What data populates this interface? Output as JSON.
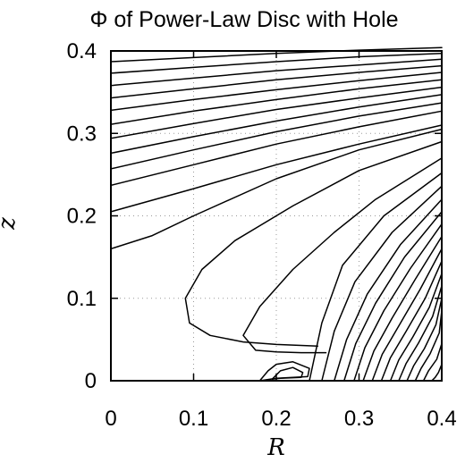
{
  "chart_data": {
    "type": "contour",
    "title": "Φ of Power-Law Disc with Hole",
    "xlabel": "R",
    "ylabel": "z",
    "xlim": [
      0,
      0.4
    ],
    "ylim": [
      0,
      0.4
    ],
    "grid": true,
    "x_ticks": [
      0,
      0.1,
      0.2,
      0.3,
      0.4
    ],
    "y_ticks": [
      0,
      0.1,
      0.2,
      0.3,
      0.4
    ],
    "x_tick_labels": [
      "0",
      "0.1",
      "0.2",
      "0.3",
      "0.4"
    ],
    "y_tick_labels": [
      "0",
      "0.1",
      "0.2",
      "0.3",
      "0.4"
    ],
    "axis_color": "#000000",
    "grid_color": "#9a9a9a",
    "line_color": "#000000",
    "series": [
      {
        "x": [
          0,
          0.1,
          0.2,
          0.3,
          0.4
        ],
        "y": [
          0.387,
          0.392,
          0.397,
          0.401,
          0.404
        ]
      },
      {
        "x": [
          0,
          0.1,
          0.2,
          0.3,
          0.4
        ],
        "y": [
          0.373,
          0.38,
          0.387,
          0.393,
          0.397
        ]
      },
      {
        "x": [
          0,
          0.1,
          0.2,
          0.3,
          0.4
        ],
        "y": [
          0.358,
          0.367,
          0.376,
          0.383,
          0.39
        ]
      },
      {
        "x": [
          0,
          0.1,
          0.2,
          0.3,
          0.4
        ],
        "y": [
          0.343,
          0.354,
          0.365,
          0.374,
          0.382
        ]
      },
      {
        "x": [
          0,
          0.1,
          0.2,
          0.3,
          0.4
        ],
        "y": [
          0.328,
          0.341,
          0.353,
          0.364,
          0.374
        ]
      },
      {
        "x": [
          0,
          0.1,
          0.2,
          0.3,
          0.4
        ],
        "y": [
          0.311,
          0.327,
          0.341,
          0.354,
          0.365
        ]
      },
      {
        "x": [
          0,
          0.1,
          0.2,
          0.3,
          0.4
        ],
        "y": [
          0.294,
          0.312,
          0.329,
          0.343,
          0.356
        ]
      },
      {
        "x": [
          0,
          0.1,
          0.2,
          0.3,
          0.4
        ],
        "y": [
          0.276,
          0.296,
          0.315,
          0.332,
          0.347
        ]
      },
      {
        "x": [
          0,
          0.1,
          0.2,
          0.3,
          0.4
        ],
        "y": [
          0.257,
          0.28,
          0.302,
          0.321,
          0.337
        ]
      },
      {
        "x": [
          0,
          0.1,
          0.2,
          0.3,
          0.4
        ],
        "y": [
          0.237,
          0.262,
          0.287,
          0.308,
          0.327
        ]
      },
      {
        "x": [
          0,
          0.1,
          0.2,
          0.3,
          0.4
        ],
        "y": [
          0.205,
          0.233,
          0.262,
          0.287,
          0.31
        ]
      },
      {
        "x": [
          0,
          0.05,
          0.1,
          0.2,
          0.3,
          0.4
        ],
        "y": [
          0.16,
          0.176,
          0.2,
          0.245,
          0.28,
          0.305
        ]
      },
      {
        "x": [
          0.4,
          0.3,
          0.22,
          0.15,
          0.11,
          0.09,
          0.095,
          0.12,
          0.16,
          0.2,
          0.25
        ],
        "y": [
          0.29,
          0.255,
          0.212,
          0.17,
          0.135,
          0.1,
          0.07,
          0.055,
          0.047,
          0.044,
          0.042
        ]
      },
      {
        "x": [
          0.4,
          0.32,
          0.27,
          0.22,
          0.18,
          0.16,
          0.175,
          0.2,
          0.23,
          0.26
        ],
        "y": [
          0.27,
          0.22,
          0.18,
          0.135,
          0.09,
          0.055,
          0.037,
          0.035,
          0.034,
          0.034
        ]
      },
      {
        "x": [
          0.4,
          0.33,
          0.28,
          0.255,
          0.24
        ],
        "y": [
          0.252,
          0.2,
          0.14,
          0.07,
          0
        ]
      },
      {
        "x": [
          0.4,
          0.34,
          0.295,
          0.27,
          0.255
        ],
        "y": [
          0.236,
          0.18,
          0.12,
          0.06,
          0
        ]
      },
      {
        "x": [
          0.4,
          0.35,
          0.31,
          0.285,
          0.27
        ],
        "y": [
          0.22,
          0.165,
          0.105,
          0.05,
          0
        ]
      },
      {
        "x": [
          0.4,
          0.355,
          0.32,
          0.296,
          0.282
        ],
        "y": [
          0.205,
          0.15,
          0.094,
          0.045,
          0
        ]
      },
      {
        "x": [
          0.4,
          0.362,
          0.33,
          0.307,
          0.294
        ],
        "y": [
          0.19,
          0.136,
          0.085,
          0.04,
          0
        ]
      },
      {
        "x": [
          0.4,
          0.368,
          0.34,
          0.318,
          0.305
        ],
        "y": [
          0.175,
          0.123,
          0.076,
          0.036,
          0
        ]
      },
      {
        "x": [
          0.4,
          0.374,
          0.349,
          0.328,
          0.316
        ],
        "y": [
          0.16,
          0.111,
          0.068,
          0.032,
          0
        ]
      },
      {
        "x": [
          0.4,
          0.38,
          0.357,
          0.338,
          0.327
        ],
        "y": [
          0.145,
          0.1,
          0.06,
          0.028,
          0
        ]
      },
      {
        "x": [
          0.4,
          0.385,
          0.365,
          0.348,
          0.338
        ],
        "y": [
          0.13,
          0.089,
          0.053,
          0.025,
          0
        ]
      },
      {
        "x": [
          0.4,
          0.389,
          0.372,
          0.357,
          0.348
        ],
        "y": [
          0.115,
          0.078,
          0.046,
          0.021,
          0
        ]
      },
      {
        "x": [
          0.4,
          0.393,
          0.379,
          0.366,
          0.358
        ],
        "y": [
          0.1,
          0.068,
          0.039,
          0.018,
          0
        ]
      },
      {
        "x": [
          0.4,
          0.397,
          0.386,
          0.375,
          0.368
        ],
        "y": [
          0.085,
          0.058,
          0.033,
          0.015,
          0
        ]
      },
      {
        "x": [
          0.4,
          0.394,
          0.384,
          0.378
        ],
        "y": [
          0.045,
          0.026,
          0.012,
          0
        ]
      },
      {
        "x": [
          0.4,
          0.396,
          0.392,
          0.388
        ],
        "y": [
          0.02,
          0.01,
          0.004,
          0
        ]
      },
      {
        "x": [
          0.18,
          0.19,
          0.2,
          0.22,
          0.24,
          0.238,
          0.2,
          0.18
        ],
        "y": [
          0,
          0.012,
          0.02,
          0.023,
          0.015,
          0.005,
          0.003,
          0
        ]
      },
      {
        "x": [
          0.195,
          0.205,
          0.22,
          0.232,
          0.23,
          0.205,
          0.195
        ],
        "y": [
          0.002,
          0.012,
          0.016,
          0.01,
          0.004,
          0.003,
          0.002
        ]
      }
    ]
  }
}
